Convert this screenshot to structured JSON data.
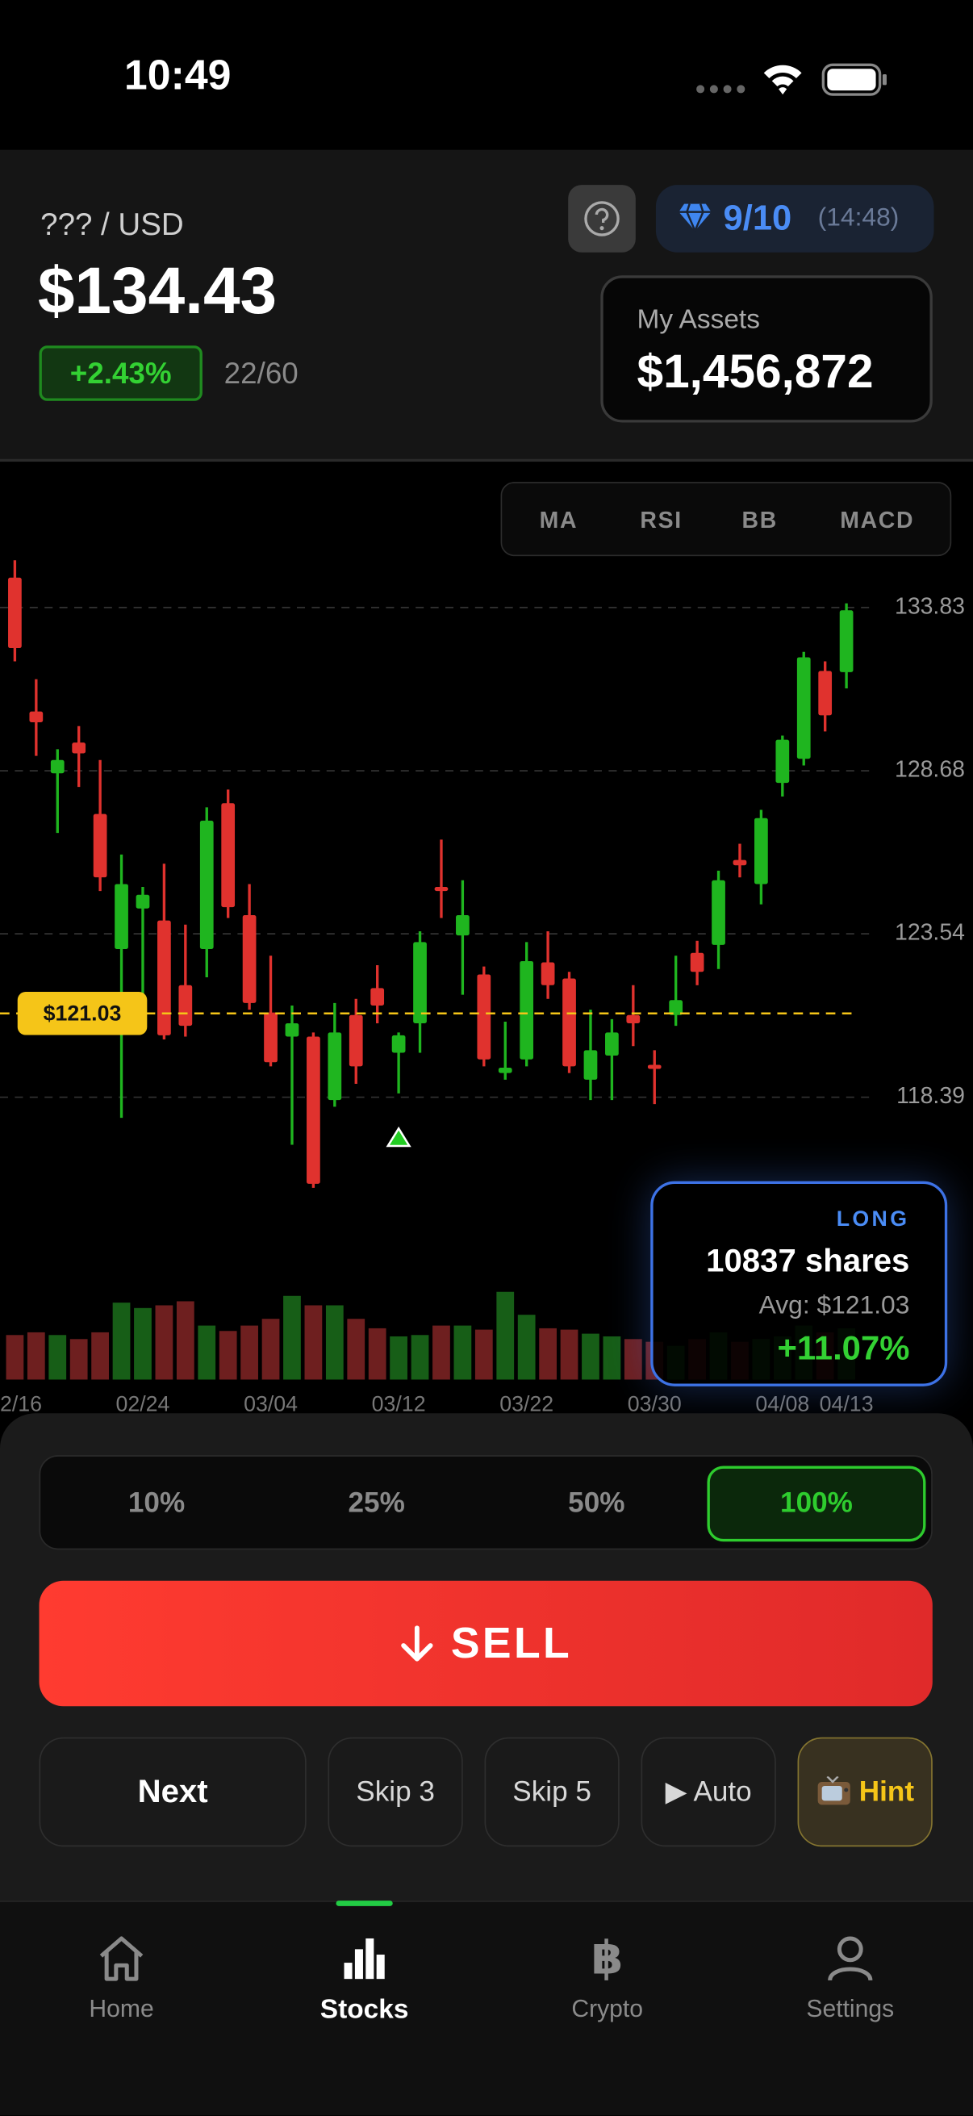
{
  "status_bar": {
    "time": "10:49"
  },
  "header": {
    "pair": "??? / USD",
    "price": "$134.43",
    "change": "+2.43%",
    "progress": "22/60",
    "gems": "9/10",
    "timer": "(14:48)",
    "assets_label": "My Assets",
    "assets_value": "$1,456,872"
  },
  "indicators": [
    "MA",
    "RSI",
    "BB",
    "MACD"
  ],
  "chart_data": {
    "type": "candlestick",
    "categories": [
      "2/16",
      null,
      null,
      null,
      null,
      null,
      "02/24",
      null,
      null,
      null,
      null,
      null,
      "03/04",
      null,
      null,
      null,
      null,
      null,
      "03/12",
      null,
      null,
      null,
      null,
      null,
      "03/22",
      null,
      null,
      null,
      null,
      null,
      "03/30",
      null,
      null,
      null,
      null,
      null,
      "04/08",
      null,
      null,
      "04/13"
    ],
    "open": [
      134.77,
      130.55,
      128.6,
      129.57,
      127.32,
      123.06,
      124.34,
      123.96,
      121.92,
      123.06,
      127.66,
      124.13,
      121.06,
      120.3,
      120.3,
      118.3,
      120.98,
      121.83,
      119.79,
      120.72,
      125.02,
      123.49,
      122.26,
      119.15,
      119.58,
      122.64,
      122.13,
      118.94,
      119.7,
      120.98,
      119.41,
      120.98,
      122.94,
      123.19,
      125.87,
      125.11,
      128.3,
      129.06,
      131.83,
      131.79
    ],
    "high": [
      135.32,
      131.57,
      129.36,
      130.09,
      129.02,
      126.04,
      125.02,
      125.75,
      123.83,
      127.53,
      128.09,
      125.11,
      122.85,
      121.28,
      120.43,
      121.36,
      121.49,
      122.55,
      120.43,
      123.62,
      126.51,
      125.23,
      122.51,
      120.77,
      123.28,
      123.62,
      122.34,
      121.15,
      120.85,
      121.92,
      119.87,
      122.85,
      123.32,
      125.53,
      126.38,
      127.45,
      129.79,
      132.43,
      132.13,
      133.96
    ],
    "low": [
      132.13,
      129.15,
      126.72,
      128.17,
      124.89,
      117.74,
      120.51,
      120.21,
      120.3,
      122.17,
      124.04,
      121.15,
      119.36,
      116.89,
      115.53,
      118.09,
      118.81,
      120.72,
      118.51,
      119.79,
      124.04,
      121.62,
      119.36,
      118.94,
      119.36,
      121.49,
      119.15,
      118.3,
      118.3,
      120.0,
      118.17,
      120.64,
      121.92,
      122.43,
      125.32,
      124.47,
      127.87,
      128.85,
      129.92,
      131.28
    ],
    "close": [
      132.55,
      130.21,
      129.02,
      129.23,
      125.32,
      125.11,
      124.77,
      120.34,
      120.64,
      127.11,
      124.38,
      121.36,
      119.49,
      120.72,
      115.66,
      120.43,
      119.36,
      121.28,
      120.34,
      123.28,
      124.89,
      124.13,
      119.58,
      119.32,
      122.68,
      121.92,
      119.36,
      119.87,
      120.43,
      120.72,
      119.28,
      121.45,
      122.34,
      125.23,
      125.7,
      127.19,
      129.66,
      132.26,
      130.43,
      133.74
    ],
    "volume": [
      33,
      35,
      33,
      30,
      35,
      57,
      53,
      55,
      58,
      40,
      36,
      40,
      45,
      62,
      55,
      55,
      45,
      38,
      32,
      33,
      40,
      40,
      37,
      65,
      48,
      38,
      37,
      34,
      32,
      30,
      28,
      25,
      30,
      35,
      28,
      30,
      32,
      40,
      35,
      38
    ],
    "colors": {
      "up": "#1fb51f",
      "down": "#e0322e"
    },
    "volume_colors": {
      "up": "#175e17",
      "down": "#6e1f1f"
    },
    "ylim": [
      112.55,
      138.3
    ],
    "yticks": [
      118.39,
      123.54,
      128.68,
      133.83
    ],
    "grid": true,
    "price_line": {
      "value": 121.03,
      "label": "$121.03"
    },
    "buy_marker_index": 18
  },
  "position": {
    "side": "LONG",
    "shares": "10837 shares",
    "avg": "Avg: $121.03",
    "pnl": "+11.07%"
  },
  "sizes": {
    "options": [
      "10%",
      "25%",
      "50%",
      "100%"
    ],
    "selected": 3
  },
  "action": "SELL",
  "controls": [
    "Next",
    "Skip 3",
    "Skip 5",
    "▶ Auto",
    "Hint"
  ],
  "tabs": {
    "items": [
      "Home",
      "Stocks",
      "Crypto",
      "Settings"
    ],
    "active": 1
  }
}
